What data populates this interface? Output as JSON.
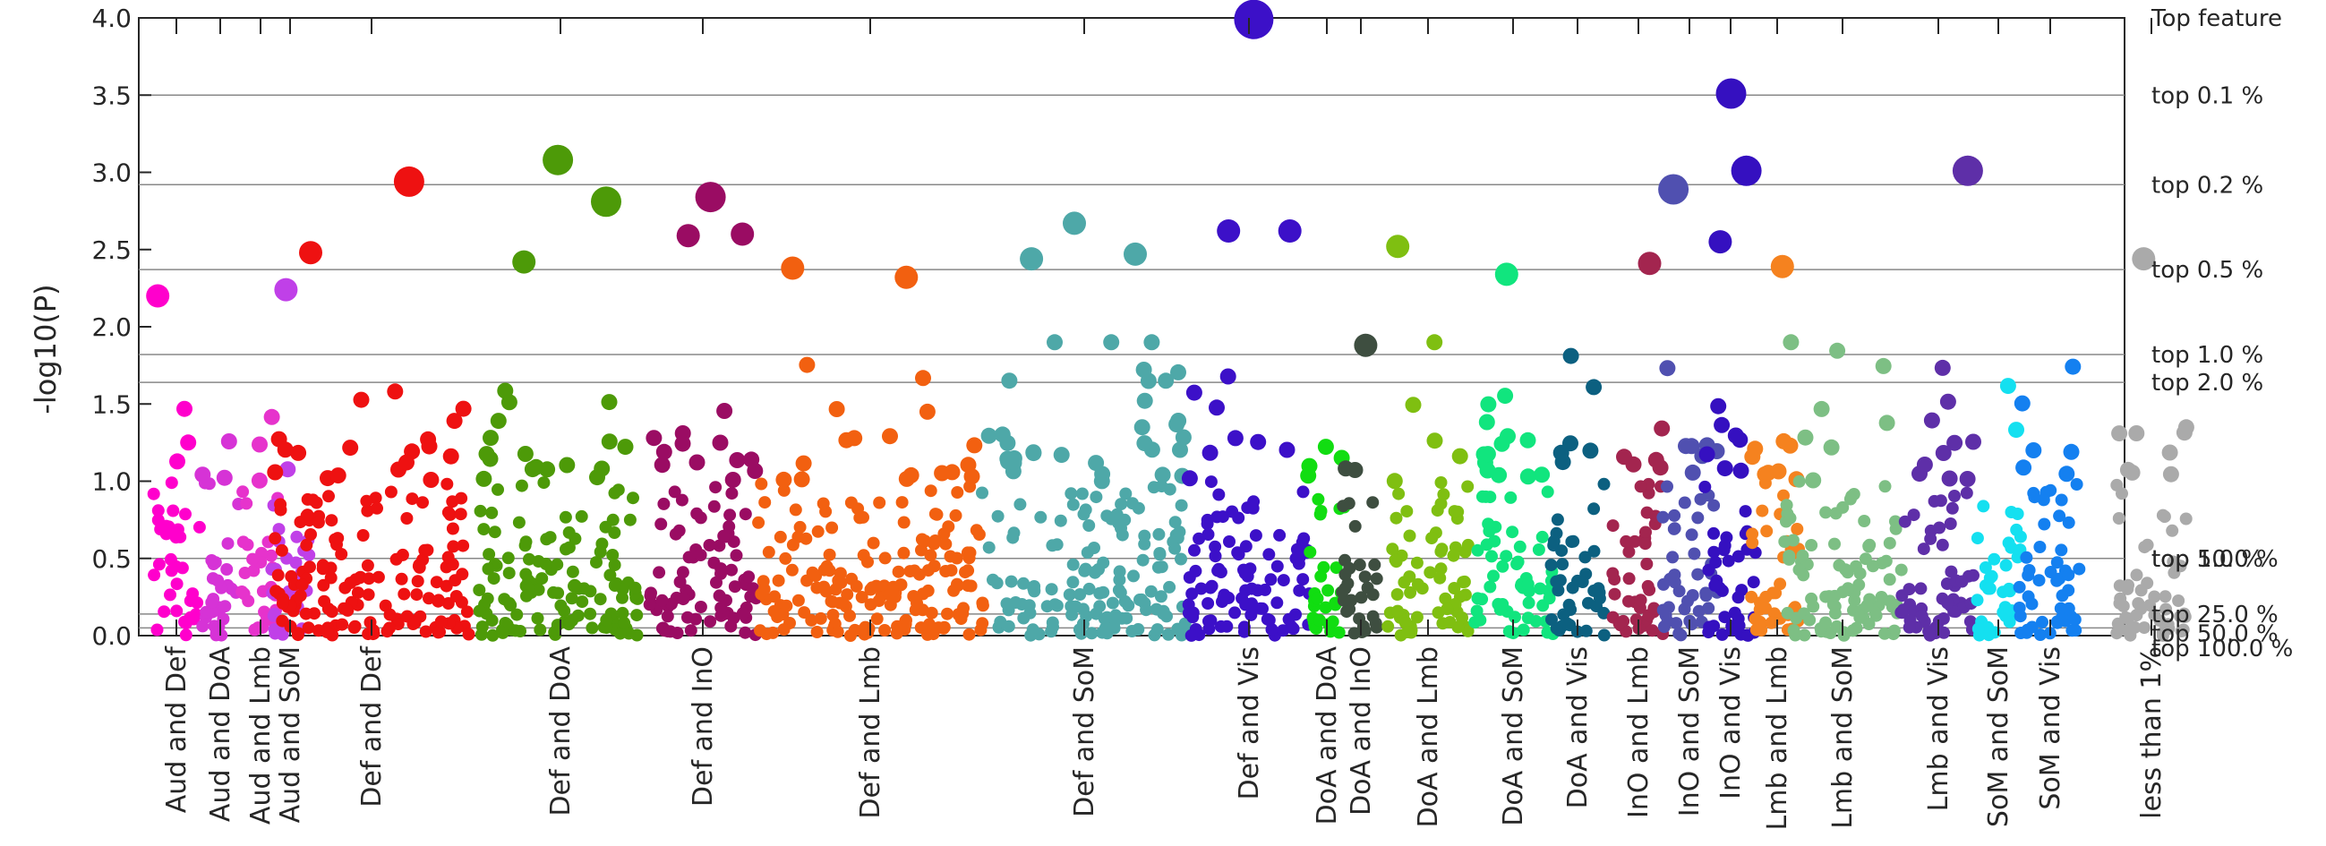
{
  "chart_data": {
    "type": "scatter",
    "title": "",
    "xlabel": "",
    "ylabel": "-log10(P)",
    "ylim": [
      0,
      4
    ],
    "yticks": [
      "0.0",
      "0.5",
      "1.0",
      "1.5",
      "2.0",
      "2.5",
      "3.0",
      "3.5",
      "4.0"
    ],
    "grid": "horizontal threshold lines",
    "right_labels": [
      {
        "text": "Top feature",
        "y": 4.0
      },
      {
        "text": "top   0.1 %",
        "y": 3.5
      },
      {
        "text": "top   0.2 %",
        "y": 2.92
      },
      {
        "text": "top   0.5 %",
        "y": 2.37
      },
      {
        "text": "top   1.0 %",
        "y": 1.82
      },
      {
        "text": "top   2.0 %",
        "y": 1.64
      },
      {
        "text": "top   5.0 %",
        "y": 0.5
      },
      {
        "text": "top  10.0 %",
        "y": 0.5
      },
      {
        "text": "top  25.0 %",
        "y": 0.14
      },
      {
        "text": "top  50.0 %",
        "y": 0.05
      },
      {
        "text": "top 100.0 %",
        "y": 0.0
      }
    ],
    "categories": [
      {
        "name": "Aud and Def",
        "color": "#FF00CC"
      },
      {
        "name": "Aud and DoA",
        "color": "#D633D6"
      },
      {
        "name": "Aud and Lmb",
        "color": "#E633CC"
      },
      {
        "name": "Aud and SoM",
        "color": "#C040E8"
      },
      {
        "name": "Def and Def",
        "color": "#EE1111"
      },
      {
        "name": "Def and DoA",
        "color": "#4D9A08"
      },
      {
        "name": "Def and InO",
        "color": "#9A0C63"
      },
      {
        "name": "Def and Lmb",
        "color": "#F26010"
      },
      {
        "name": "Def and SoM",
        "color": "#4EA8A8"
      },
      {
        "name": "Def and Vis",
        "color": "#3C10C8"
      },
      {
        "name": "DoA and DoA",
        "color": "#11DD11"
      },
      {
        "name": "DoA and InO",
        "color": "#3E4E40"
      },
      {
        "name": "DoA and Lmb",
        "color": "#7FBF11"
      },
      {
        "name": "DoA and SoM",
        "color": "#11E57E"
      },
      {
        "name": "DoA and Vis",
        "color": "#0C6080"
      },
      {
        "name": "InO and Lmb",
        "color": "#A3254F"
      },
      {
        "name": "InO and SoM",
        "color": "#5050B0"
      },
      {
        "name": "InO and Vis",
        "color": "#3510C0"
      },
      {
        "name": "Lmb and Lmb",
        "color": "#F5821F"
      },
      {
        "name": "Lmb and SoM",
        "color": "#7DBF84"
      },
      {
        "name": "Lmb and Vis",
        "color": "#5E2FA8"
      },
      {
        "name": "SoM and SoM",
        "color": "#14E0F0"
      },
      {
        "name": "SoM and Vis",
        "color": "#1480F0"
      },
      {
        "name": "less than 1%",
        "color": "#AAAAAA"
      }
    ],
    "highlight_points": [
      {
        "category": "Aud and Def",
        "y": 2.2
      },
      {
        "category": "Aud and SoM",
        "y": 2.24
      },
      {
        "category": "Def and Def",
        "y": 2.94
      },
      {
        "category": "Def and Def",
        "y": 2.48
      },
      {
        "category": "Def and DoA",
        "y": 3.08
      },
      {
        "category": "Def and DoA",
        "y": 2.81
      },
      {
        "category": "Def and DoA",
        "y": 2.42
      },
      {
        "category": "Def and InO",
        "y": 2.84
      },
      {
        "category": "Def and InO",
        "y": 2.6
      },
      {
        "category": "Def and InO",
        "y": 2.59
      },
      {
        "category": "Def and Lmb",
        "y": 2.32
      },
      {
        "category": "Def and Lmb",
        "y": 2.38
      },
      {
        "category": "Def and SoM",
        "y": 2.67
      },
      {
        "category": "Def and SoM",
        "y": 2.47
      },
      {
        "category": "Def and SoM",
        "y": 2.44
      },
      {
        "category": "Def and Vis",
        "y": 3.99
      },
      {
        "category": "Def and Vis",
        "y": 2.62
      },
      {
        "category": "Def and Vis",
        "y": 2.62
      },
      {
        "category": "DoA and InO",
        "y": 1.88
      },
      {
        "category": "DoA and Lmb",
        "y": 2.52
      },
      {
        "category": "DoA and SoM",
        "y": 2.34
      },
      {
        "category": "InO and Lmb",
        "y": 2.41
      },
      {
        "category": "InO and SoM",
        "y": 2.89
      },
      {
        "category": "InO and Vis",
        "y": 3.51
      },
      {
        "category": "InO and Vis",
        "y": 3.01
      },
      {
        "category": "InO and Vis",
        "y": 2.55
      },
      {
        "category": "Lmb and Lmb",
        "y": 2.39
      },
      {
        "category": "Lmb and Vis",
        "y": 3.01
      },
      {
        "category": "less than 1%",
        "y": 2.44
      }
    ]
  }
}
